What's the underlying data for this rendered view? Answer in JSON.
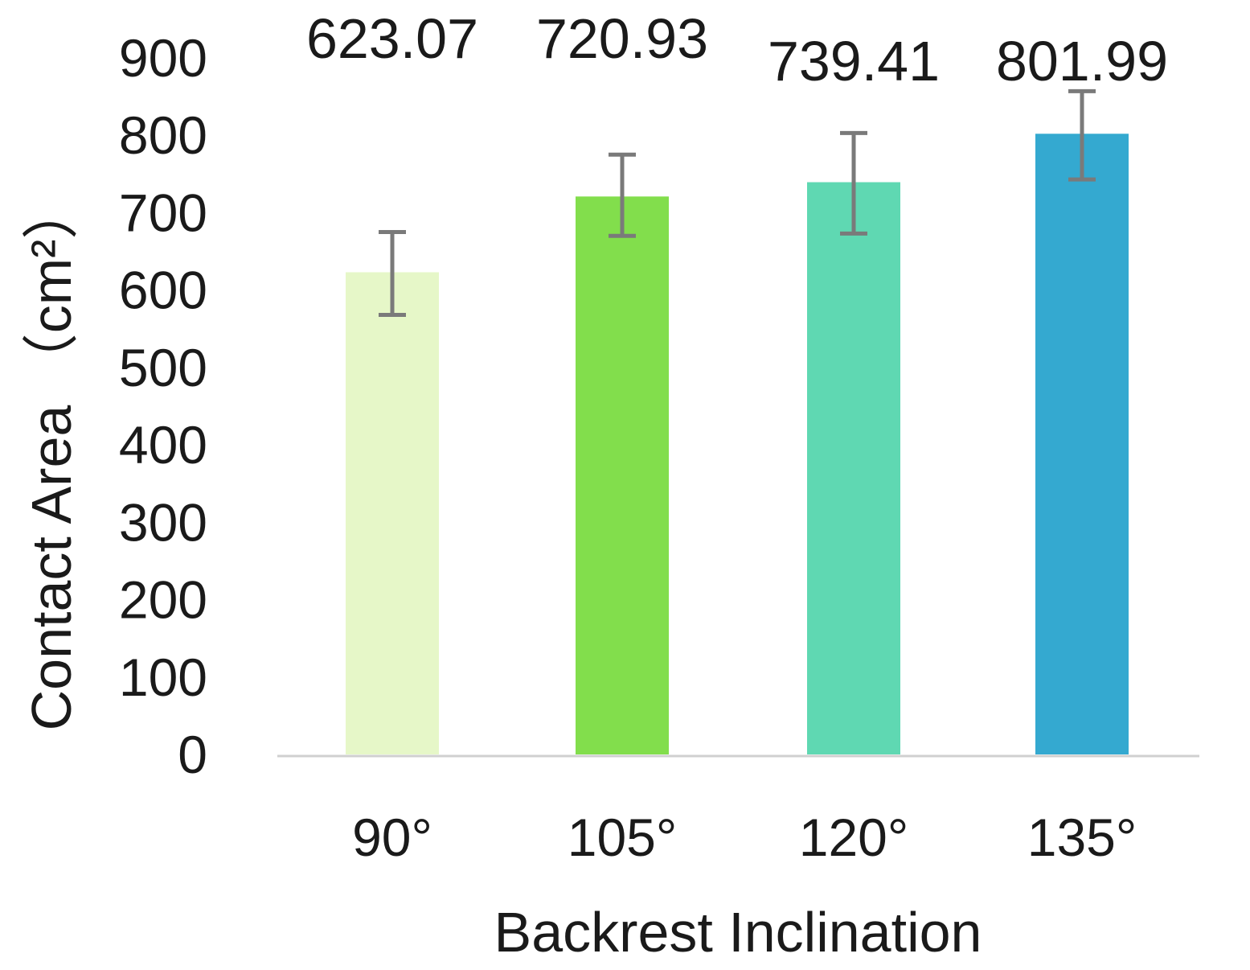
{
  "chart_data": {
    "type": "bar",
    "categories": [
      "90°",
      "105°",
      "120°",
      "135°"
    ],
    "values": [
      623.07,
      720.93,
      739.41,
      801.99
    ],
    "data_labels": [
      "623.07",
      "720.93",
      "739.41",
      "801.99"
    ],
    "error_bars": [
      {
        "low": 568,
        "high": 675
      },
      {
        "low": 670,
        "high": 775
      },
      {
        "low": 673,
        "high": 803
      },
      {
        "low": 743,
        "high": 857
      }
    ],
    "colors": [
      "#e6f7c8",
      "#82de4c",
      "#5fd8b2",
      "#34a9d0"
    ],
    "error_bar_color": "#7a7a7a",
    "title": "",
    "xlabel": "Backrest Inclination",
    "ylabel": "Contact Area （cm²）",
    "ylim": [
      0,
      900
    ],
    "yticks": [
      0,
      100,
      200,
      300,
      400,
      500,
      600,
      700,
      800,
      900
    ],
    "grid": false,
    "legend": "none"
  }
}
